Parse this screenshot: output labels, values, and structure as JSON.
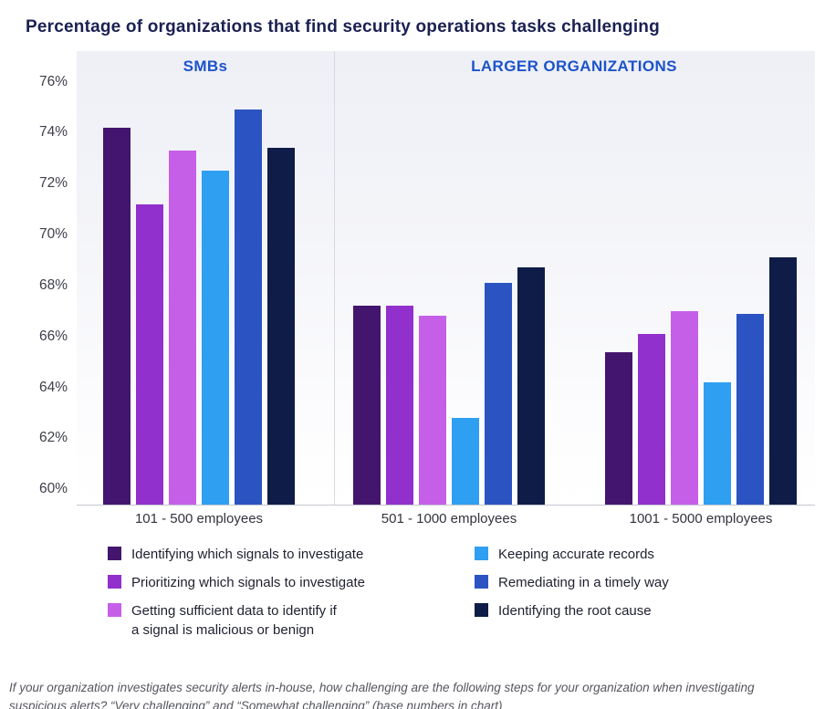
{
  "page": {
    "footnote": "If your organization investigates security alerts in-house, how challenging are the following steps for your organization when investigating suspicious alerts? “Very challenging” and “Somewhat challenging” (base numbers in chart)"
  },
  "chart_data": {
    "type": "bar",
    "title": "Percentage of organizations that find security operations tasks challenging",
    "section_headers": [
      {
        "label": "SMBs",
        "color": "#1d53c9"
      },
      {
        "label": "LARGER ORGANIZATIONS",
        "color": "#1d53c9"
      }
    ],
    "categories": [
      "101 - 500 employees",
      "501 - 1000 employees",
      "1001 - 5000 employees"
    ],
    "series": [
      {
        "name": "Identifying which signals to investigate",
        "legend_lines": [
          "Identifying which signals to investigate"
        ],
        "color": "#44156e",
        "values": [
          74.2,
          67.2,
          65.4
        ]
      },
      {
        "name": "Prioritizing which signals to investigate",
        "legend_lines": [
          "Prioritizing which signals to investigate"
        ],
        "color": "#9130cc",
        "values": [
          71.2,
          67.2,
          66.1
        ]
      },
      {
        "name": "Getting sufficient data to identify if a signal is malicious or benign",
        "legend_lines": [
          "Getting sufficient data to identify if",
          "a signal is malicious or benign"
        ],
        "color": "#c65fe8",
        "values": [
          73.3,
          66.8,
          67.0
        ]
      },
      {
        "name": "Keeping accurate records",
        "legend_lines": [
          "Keeping accurate records"
        ],
        "color": "#2f9ff2",
        "values": [
          72.5,
          62.8,
          64.2
        ]
      },
      {
        "name": "Remediating in a timely way",
        "legend_lines": [
          "Remediating in a timely way"
        ],
        "color": "#2b54c2",
        "values": [
          74.9,
          68.1,
          66.9
        ]
      },
      {
        "name": "Identifying the root cause",
        "legend_lines": [
          "Identifying the root cause"
        ],
        "color": "#0e1c47",
        "values": [
          73.4,
          68.7,
          69.1
        ]
      }
    ],
    "y_axis": {
      "unit": "%",
      "ticks": [
        "76%",
        "74%",
        "72%",
        "70%",
        "68%",
        "66%",
        "64%",
        "62%",
        "60%"
      ],
      "values": [
        76,
        74,
        72,
        70,
        68,
        66,
        64,
        62,
        60
      ],
      "min": 59.4,
      "max": 77.2
    },
    "legend": {
      "position": "bottom",
      "columns": [
        [
          0,
          1,
          2
        ],
        [
          3,
          4,
          5
        ]
      ]
    },
    "grid": "off"
  }
}
